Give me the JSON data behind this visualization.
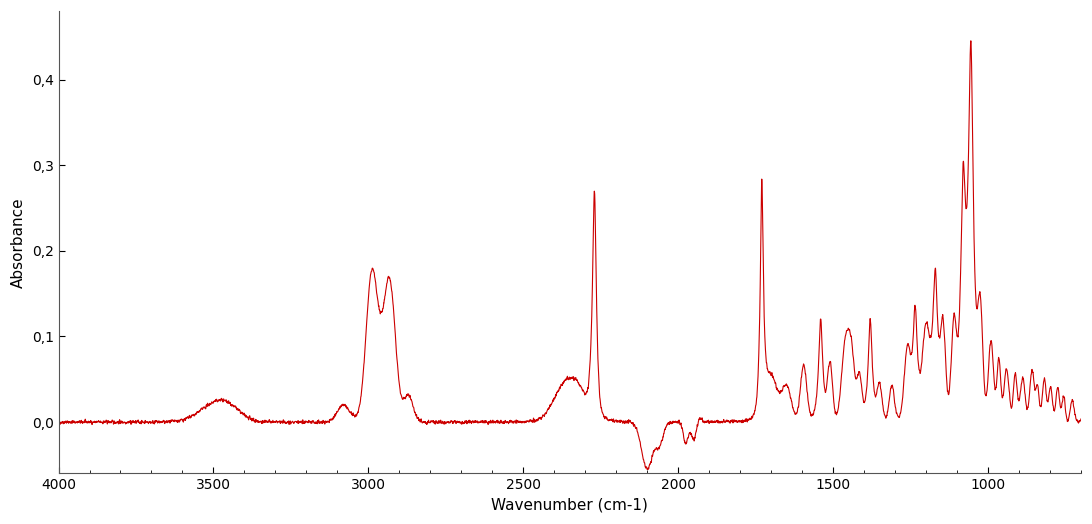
{
  "title": "",
  "xlabel": "Wavenumber (cm-1)",
  "ylabel": "Absorbance",
  "xlim": [
    4000,
    700
  ],
  "ylim": [
    -0.06,
    0.48
  ],
  "xticks": [
    4000,
    3500,
    3000,
    2500,
    2000,
    1500,
    1000
  ],
  "yticks": [
    0.0,
    0.1,
    0.2,
    0.3,
    0.4
  ],
  "ytick_labels": [
    "0,0",
    "0,1",
    "0,2",
    "0,3",
    "0,4"
  ],
  "line_color": "#cc0000",
  "bg_color": "#ffffff",
  "linewidth": 0.8
}
